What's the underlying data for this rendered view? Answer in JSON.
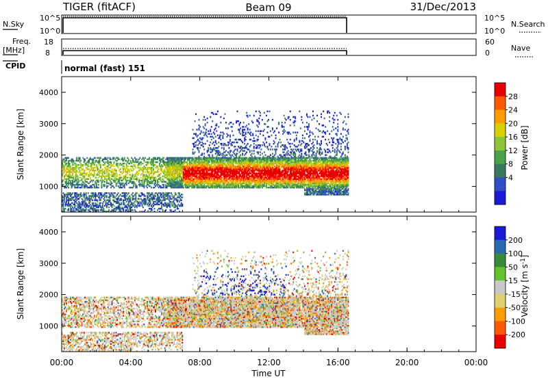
{
  "header": {
    "radar": "TIGER (fitACF)",
    "beam": "Beam 09",
    "date": "31/Dec/2013"
  },
  "noise_panel": {
    "left_label": "N.Sky",
    "left_ticks": [
      "10^5",
      "10^0"
    ],
    "right_ticks": [
      "10^5",
      "10^0"
    ],
    "right_label": "N.Search"
  },
  "freq_panel": {
    "left_label_line1": "Freq.",
    "left_label_line2": "[MHz]",
    "left_ticks": [
      "18",
      "8"
    ],
    "right_ticks": [
      "60",
      "0"
    ],
    "right_label": "Nave"
  },
  "cpid_panel": {
    "label": "CPID",
    "program": "normal (fast) 151"
  },
  "colors": {
    "power_scale": [
      "#1a1ad8",
      "#2f4fc8",
      "#3a7a5c",
      "#4aa24a",
      "#8dc43a",
      "#d6d000",
      "#ff9b00",
      "#ff5a00",
      "#e80000"
    ],
    "velocity_scale": [
      "#1a1ad8",
      "#2a6ab0",
      "#3a8a3a",
      "#66c22a",
      "#c8c8c8",
      "#e0d070",
      "#ff9b00",
      "#ff5a00",
      "#e80000"
    ]
  },
  "chart_data": [
    {
      "type": "heatmap",
      "panel": "power",
      "xlabel": "Time UT",
      "ylabel": "Slant Range [km]",
      "x_ticks": [
        "00:00",
        "04:00",
        "08:00",
        "12:00",
        "16:00",
        "20:00",
        "00:00"
      ],
      "x_range_hours": [
        0,
        24
      ],
      "y_ticks": [
        1000,
        2000,
        3000,
        4000
      ],
      "ylim": [
        180,
        4500
      ],
      "data_coverage_hours": [
        0,
        16.6
      ],
      "colorbar": {
        "label": "Power [dB]",
        "ticks": [
          4,
          8,
          12,
          16,
          20,
          24,
          28
        ],
        "range": [
          0,
          32
        ]
      }
    },
    {
      "type": "heatmap",
      "panel": "velocity",
      "xlabel": "Time UT",
      "ylabel": "Slant Range [km]",
      "x_ticks": [
        "00:00",
        "04:00",
        "08:00",
        "12:00",
        "16:00",
        "20:00",
        "00:00"
      ],
      "x_range_hours": [
        0,
        24
      ],
      "y_ticks": [
        1000,
        2000,
        3000,
        4000
      ],
      "ylim": [
        180,
        4500
      ],
      "data_coverage_hours": [
        0,
        16.6
      ],
      "colorbar": {
        "label": "Velocity [m s-1]",
        "ticks": [
          "200",
          "100",
          "50",
          "15",
          "-15",
          "-50",
          "-100",
          "-200"
        ]
      }
    }
  ],
  "axes": {
    "xlabel": "Time UT",
    "x_ticks": [
      "00:00",
      "04:00",
      "08:00",
      "12:00",
      "16:00",
      "20:00",
      "00:00"
    ],
    "ylabel": "Slant Range [km]",
    "power_bar_label": "Power [dB]",
    "velocity_bar_label": "Velocity [m s"
  }
}
